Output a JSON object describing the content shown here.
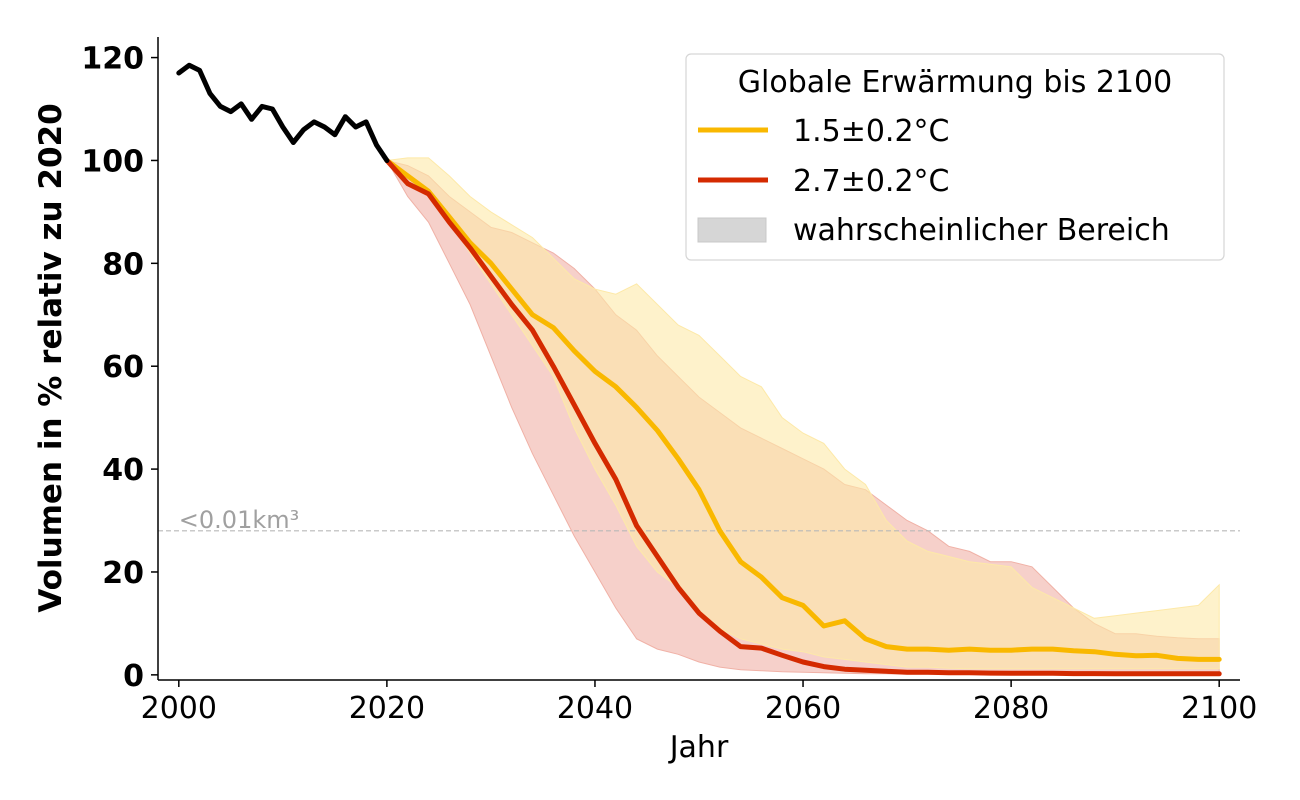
{
  "chart_data": {
    "type": "line",
    "xlabel": "Jahr",
    "ylabel": "Volumen in % relativ zu 2020",
    "xlim": [
      1998,
      2102
    ],
    "ylim": [
      -1,
      124
    ],
    "xticks": [
      2000,
      2020,
      2040,
      2060,
      2080,
      2100
    ],
    "yticks": [
      0,
      20,
      40,
      60,
      80,
      100,
      120
    ],
    "grid": false,
    "legend": {
      "placement": "top-right",
      "title": "Globale Erwärmung bis 2100",
      "entries": [
        "1.5±0.2°C",
        "2.7±0.2°C",
        "wahrscheinlicher Bereich"
      ]
    },
    "threshold": {
      "y": 28,
      "label": "<0.01km³",
      "color": "#b0b0b0"
    },
    "observed": {
      "color": "#000000",
      "x": [
        2000,
        2001,
        2002,
        2003,
        2004,
        2005,
        2006,
        2007,
        2008,
        2009,
        2010,
        2011,
        2012,
        2013,
        2014,
        2015,
        2016,
        2017,
        2018,
        2019,
        2020
      ],
      "y": [
        117,
        118.5,
        117.5,
        113,
        110.5,
        109.5,
        111,
        108,
        110.5,
        110,
        106.5,
        103.5,
        106,
        107.5,
        106.5,
        105,
        108.5,
        106.5,
        107.5,
        103,
        100
      ]
    },
    "series": [
      {
        "name": "1.5±0.2°C",
        "color": "#f9b800",
        "band_color": "#fde9a8",
        "x": [
          2020,
          2022,
          2024,
          2026,
          2028,
          2030,
          2032,
          2034,
          2036,
          2038,
          2040,
          2042,
          2044,
          2046,
          2048,
          2050,
          2052,
          2054,
          2056,
          2058,
          2060,
          2062,
          2064,
          2066,
          2068,
          2070,
          2072,
          2074,
          2076,
          2078,
          2080,
          2082,
          2084,
          2086,
          2088,
          2090,
          2092,
          2094,
          2096,
          2098,
          2100
        ],
        "y": [
          100,
          97,
          94,
          89,
          84,
          80,
          75,
          70,
          67.5,
          63,
          59,
          56,
          52,
          47.5,
          42,
          36,
          28,
          22,
          19,
          15,
          13.5,
          9.5,
          10.5,
          7,
          5.5,
          5,
          5,
          4.8,
          5,
          4.8,
          4.8,
          5,
          5,
          4.7,
          4.5,
          4,
          3.7,
          3.8,
          3.2,
          3,
          3
        ],
        "upper": [
          100,
          100.5,
          100.5,
          97,
          93,
          90,
          87.5,
          85,
          81,
          77,
          75,
          74,
          76,
          72,
          68,
          66,
          62,
          58,
          56,
          50,
          47,
          45,
          40,
          37,
          30,
          26,
          24,
          23,
          22,
          21.5,
          21,
          17,
          15,
          13,
          11,
          11.5,
          12,
          12.5,
          13,
          13.5,
          17.5
        ],
        "lower": [
          100,
          97,
          93,
          88,
          82,
          76,
          70,
          64,
          58,
          48,
          40,
          33,
          25,
          20,
          17,
          12,
          9,
          7,
          6,
          5,
          4.5,
          3.5,
          3,
          2.5,
          2,
          1.5,
          1.5,
          1.3,
          1.2,
          1.2,
          1.2,
          1.2,
          1.2,
          1.2,
          1.2,
          1.2,
          1.2,
          1.2,
          1.2,
          1.2,
          1.2
        ]
      },
      {
        "name": "2.7±0.2°C",
        "color": "#d42a00",
        "band_color": "#f0b1a6",
        "x": [
          2020,
          2022,
          2024,
          2026,
          2028,
          2030,
          2032,
          2034,
          2036,
          2038,
          2040,
          2042,
          2044,
          2046,
          2048,
          2050,
          2052,
          2054,
          2056,
          2058,
          2060,
          2062,
          2064,
          2066,
          2068,
          2070,
          2072,
          2074,
          2076,
          2078,
          2080,
          2082,
          2084,
          2086,
          2088,
          2090,
          2092,
          2094,
          2096,
          2098,
          2100
        ],
        "y": [
          100,
          95.5,
          93.5,
          88,
          83,
          77.5,
          72,
          67,
          60,
          52.5,
          45,
          38,
          29,
          23,
          17,
          12,
          8.5,
          5.5,
          5.2,
          3.8,
          2.5,
          1.6,
          1.1,
          0.9,
          0.7,
          0.5,
          0.5,
          0.4,
          0.4,
          0.35,
          0.3,
          0.3,
          0.3,
          0.25,
          0.25,
          0.2,
          0.2,
          0.2,
          0.2,
          0.2,
          0.2
        ],
        "upper": [
          100,
          99,
          97,
          93,
          90,
          87,
          86,
          84,
          82,
          79,
          75,
          70,
          67,
          62,
          58,
          54,
          51,
          48,
          46,
          44,
          42,
          40,
          37,
          36,
          33,
          30,
          28,
          25,
          24,
          22,
          22,
          21,
          17,
          13,
          10,
          8,
          8,
          7.5,
          7.2,
          7,
          7
        ],
        "lower": [
          100,
          93,
          88,
          80,
          72,
          62,
          52,
          43,
          35,
          27,
          20,
          13,
          7,
          5,
          4,
          2.5,
          1.5,
          1,
          0.8,
          0.6,
          0.5,
          0.4,
          0.3,
          0.2,
          0.2,
          0.1,
          0.1,
          0.1,
          0.1,
          0.1,
          0.1,
          0.1,
          0.1,
          0.1,
          0.1,
          0.1,
          0.1,
          0.1,
          0.1,
          0.1,
          0.1
        ]
      }
    ]
  }
}
